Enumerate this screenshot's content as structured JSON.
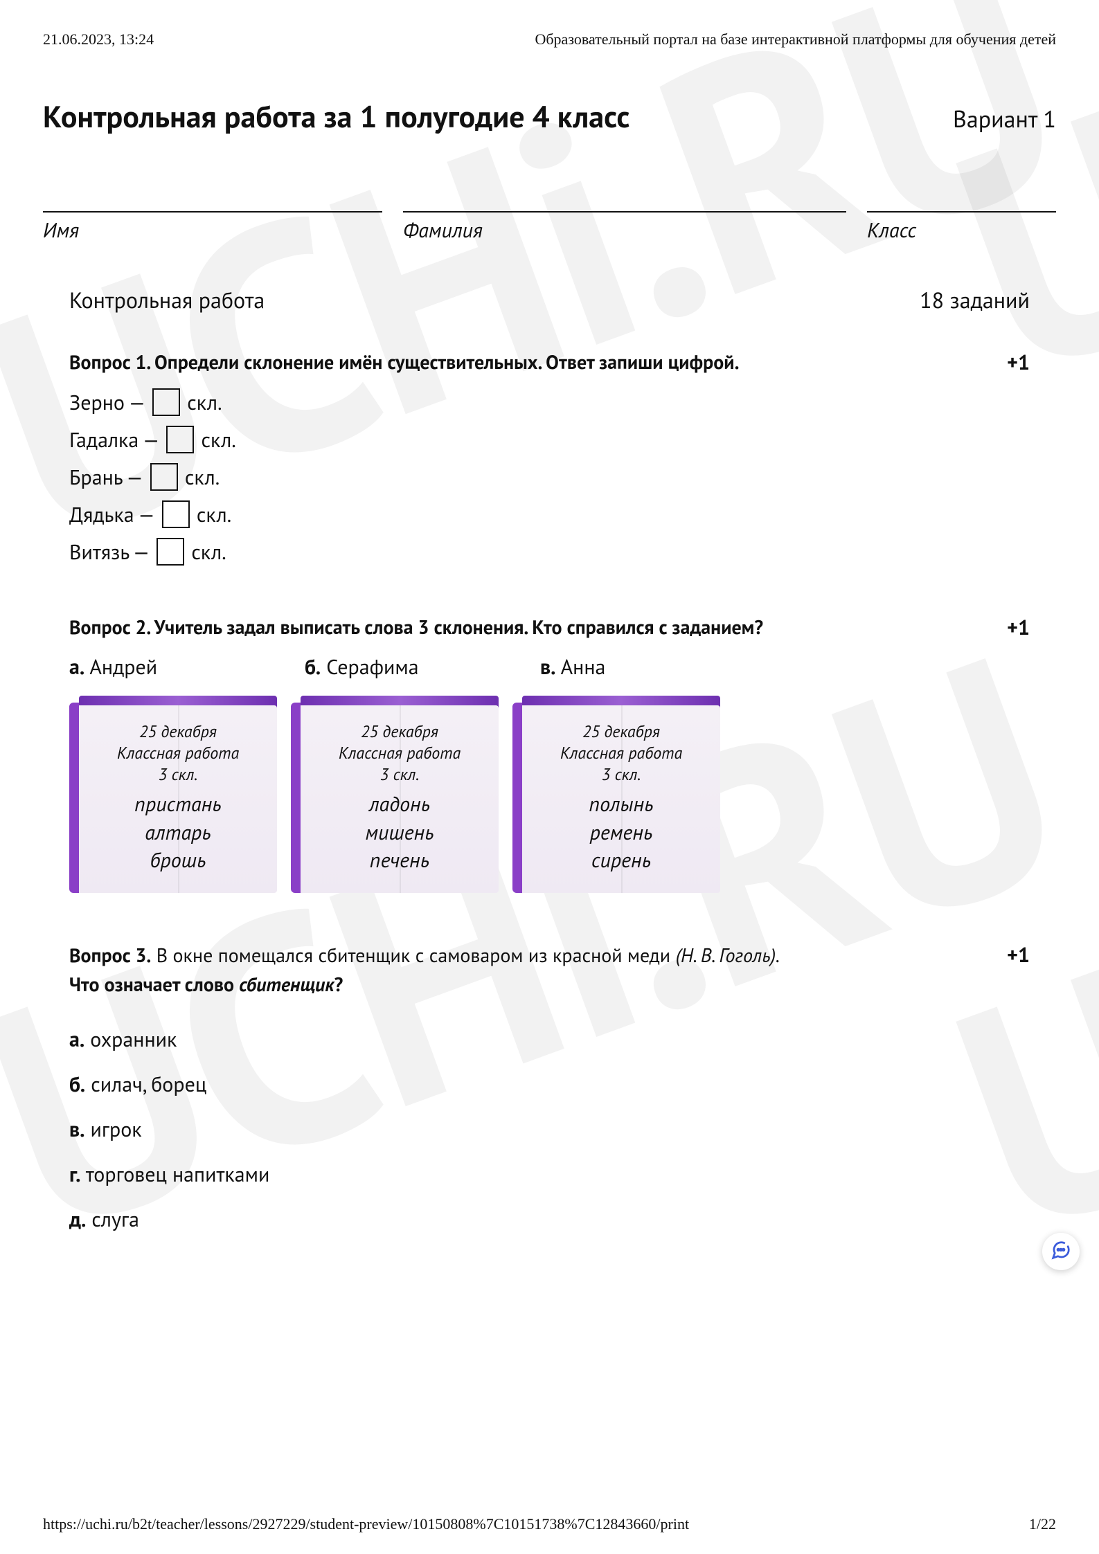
{
  "header": {
    "timestamp": "21.06.2023, 13:24",
    "site_title": "Образовательный портал на базе интерактивной платформы для обучения детей"
  },
  "watermark_text": "UCHi.RU",
  "title": "Контрольная работа за 1 полугодие 4 класс",
  "variant": "Вариант 1",
  "fields": {
    "name": "Имя",
    "surname": "Фамилия",
    "class": "Класс"
  },
  "section": {
    "label": "Контрольная работа",
    "count": "18 заданий"
  },
  "q1": {
    "title": "Вопрос 1. Определи склонение имён существительных. Ответ запиши цифрой.",
    "points": "+1",
    "suffix": "скл.",
    "items": [
      "Зерно",
      "Гадалка",
      "Брань",
      "Дядька",
      "Витязь"
    ]
  },
  "q2": {
    "title": "Вопрос 2. Учитель задал выписать слова 3 склонения. Кто справился с заданием?",
    "points": "+1",
    "options": [
      {
        "letter": "а.",
        "text": "Андрей"
      },
      {
        "letter": "б.",
        "text": "Серафима"
      },
      {
        "letter": "в.",
        "text": "Анна"
      }
    ],
    "book_date": "25 декабря",
    "book_sub": "Классная работа",
    "book_skl": "3 скл.",
    "book_colors": {
      "spine": "#8a3fc7",
      "page_bg": "#f1ecf4"
    },
    "books": [
      {
        "words": [
          "пристань",
          "алтарь",
          "брошь"
        ]
      },
      {
        "words": [
          "ладонь",
          "мишень",
          "печень"
        ]
      },
      {
        "words": [
          "полынь",
          "ремень",
          "сирень"
        ]
      }
    ]
  },
  "q3": {
    "prefix": "Вопрос 3.",
    "sentence": " В окне помещался сбитенщик с самоваром из красной меди ",
    "author": "(Н. В. Гоголь).",
    "sub": "Что означает слово ",
    "sub_word": "сбитенщик",
    "sub_q": "?",
    "points": "+1",
    "answers": [
      {
        "letter": "а.",
        "text": "охранник"
      },
      {
        "letter": "б.",
        "text": "силач, борец"
      },
      {
        "letter": "в.",
        "text": "игрок"
      },
      {
        "letter": "г.",
        "text": "торговец напитками"
      },
      {
        "letter": "д.",
        "text": "слуга"
      }
    ]
  },
  "chat_icon_name": "chat-bubble-icon",
  "footer": {
    "url": "https://uchi.ru/b2t/teacher/lessons/2927229/student-preview/10150808%7C10151738%7C12843660/print",
    "page": "1/22"
  }
}
